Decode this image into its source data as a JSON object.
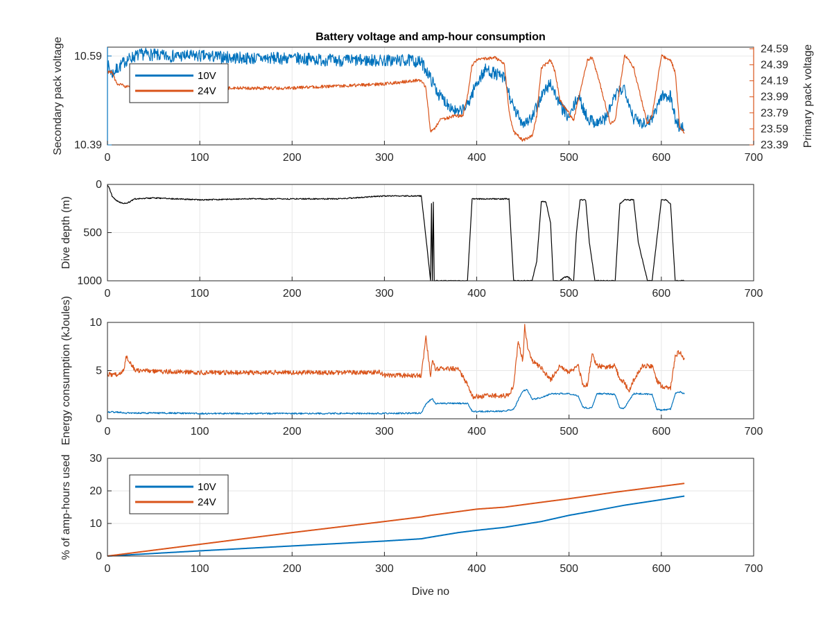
{
  "figure": {
    "title": "Battery voltage and amp-hour consumption",
    "xlabel": "Dive no"
  },
  "colors": {
    "blue": "#0072BD",
    "orange": "#D95319",
    "black": "#000000",
    "grid": "#e6e6e6",
    "axis": "#262626"
  },
  "chart_data": [
    {
      "type": "line",
      "title": "Battery voltage and amp-hour consumption",
      "xlabel": "",
      "ylabel": "Secondary pack voltage",
      "ylabel_right": "Primary pack voltage",
      "xlim": [
        0,
        700
      ],
      "xticks": [
        0,
        100,
        200,
        300,
        400,
        500,
        600,
        700
      ],
      "ylim": [
        10.39,
        10.61
      ],
      "yticks": [
        10.39,
        10.59
      ],
      "ylim_right": [
        23.39,
        24.61
      ],
      "yticks_right": [
        23.39,
        23.59,
        23.79,
        23.99,
        24.19,
        24.39,
        24.59
      ],
      "grid": true,
      "legend": "top-left",
      "series": [
        {
          "name": "10V",
          "axis": "left",
          "color": "#0072BD",
          "noise": 0.014,
          "x": [
            0,
            5,
            10,
            20,
            30,
            40,
            60,
            100,
            150,
            200,
            250,
            300,
            330,
            340,
            345,
            350,
            355,
            360,
            370,
            380,
            390,
            400,
            410,
            420,
            430,
            440,
            450,
            460,
            470,
            480,
            490,
            500,
            510,
            520,
            530,
            540,
            550,
            560,
            570,
            580,
            590,
            600,
            610,
            615,
            620,
            625
          ],
          "y": [
            10.57,
            10.55,
            10.56,
            10.58,
            10.59,
            10.595,
            10.59,
            10.59,
            10.585,
            10.585,
            10.58,
            10.58,
            10.58,
            10.575,
            10.56,
            10.54,
            10.52,
            10.5,
            10.48,
            10.46,
            10.48,
            10.53,
            10.56,
            10.55,
            10.54,
            10.47,
            10.44,
            10.45,
            10.5,
            10.53,
            10.48,
            10.45,
            10.5,
            10.45,
            10.44,
            10.45,
            10.5,
            10.52,
            10.45,
            10.44,
            10.45,
            10.5,
            10.5,
            10.45,
            10.43,
            10.43
          ]
        },
        {
          "name": "24V",
          "axis": "right",
          "color": "#D95319",
          "noise": 0.02,
          "x": [
            0,
            5,
            10,
            20,
            40,
            100,
            200,
            300,
            340,
            345,
            350,
            355,
            360,
            375,
            385,
            390,
            395,
            400,
            420,
            430,
            435,
            440,
            450,
            460,
            465,
            470,
            480,
            485,
            490,
            505,
            510,
            520,
            525,
            530,
            545,
            550,
            560,
            565,
            570,
            585,
            590,
            600,
            610,
            615,
            620,
            625
          ],
          "y": [
            24.3,
            24.3,
            24.15,
            24.12,
            24.12,
            24.1,
            24.1,
            24.15,
            24.2,
            24.1,
            23.55,
            23.6,
            23.7,
            23.75,
            23.75,
            24.0,
            24.39,
            24.45,
            24.48,
            24.4,
            23.8,
            23.55,
            23.45,
            23.5,
            23.75,
            24.35,
            24.45,
            24.3,
            23.95,
            23.7,
            23.95,
            24.45,
            24.48,
            24.3,
            23.65,
            23.7,
            24.5,
            24.45,
            24.35,
            23.65,
            23.75,
            24.5,
            24.45,
            24.3,
            23.6,
            23.55
          ]
        }
      ]
    },
    {
      "type": "line",
      "title": "",
      "xlabel": "",
      "ylabel": "Dive depth (m)",
      "xlim": [
        0,
        700
      ],
      "xticks": [
        0,
        100,
        200,
        300,
        400,
        500,
        600,
        700
      ],
      "ylim": [
        0,
        1000
      ],
      "yticks": [
        0,
        500,
        1000
      ],
      "y_reversed": true,
      "grid": true,
      "series": [
        {
          "name": "",
          "color": "#000000",
          "noise": 6,
          "x": [
            0,
            2,
            5,
            10,
            15,
            20,
            30,
            50,
            100,
            150,
            200,
            250,
            300,
            340,
            345,
            350,
            351,
            352,
            353,
            354,
            355,
            360,
            390,
            395,
            400,
            410,
            420,
            435,
            440,
            445,
            460,
            465,
            470,
            475,
            480,
            483,
            490,
            495,
            500,
            503,
            505,
            508,
            512,
            518,
            522,
            528,
            530,
            550,
            555,
            560,
            570,
            575,
            585,
            590,
            600,
            605,
            610,
            615,
            620,
            625
          ],
          "y": [
            0,
            40,
            120,
            170,
            190,
            200,
            150,
            140,
            160,
            150,
            150,
            150,
            120,
            120,
            550,
            1000,
            200,
            1000,
            180,
            1000,
            1000,
            1000,
            1000,
            150,
            150,
            150,
            150,
            150,
            1000,
            1000,
            1000,
            800,
            180,
            180,
            400,
            1000,
            1000,
            960,
            960,
            1000,
            1000,
            500,
            160,
            160,
            600,
            1000,
            1000,
            1000,
            200,
            160,
            160,
            600,
            1000,
            1000,
            160,
            160,
            200,
            1000,
            1000,
            1000
          ]
        }
      ]
    },
    {
      "type": "line",
      "title": "",
      "xlabel": "",
      "ylabel": "Energy consumption (kJoules)",
      "xlim": [
        0,
        700
      ],
      "xticks": [
        0,
        100,
        200,
        300,
        400,
        500,
        600,
        700
      ],
      "ylim": [
        0,
        10
      ],
      "yticks": [
        0,
        5,
        10
      ],
      "grid": true,
      "series": [
        {
          "name": "",
          "color": "#0072BD",
          "noise": 0.08,
          "x": [
            0,
            10,
            20,
            50,
            100,
            200,
            295,
            300,
            340,
            345,
            348,
            352,
            355,
            360,
            390,
            395,
            400,
            430,
            440,
            450,
            455,
            460,
            470,
            480,
            490,
            500,
            510,
            515,
            520,
            525,
            530,
            540,
            550,
            555,
            560,
            570,
            580,
            590,
            595,
            600,
            610,
            615,
            620,
            625
          ],
          "y": [
            0.7,
            0.7,
            0.6,
            0.6,
            0.55,
            0.55,
            0.55,
            0.55,
            0.6,
            1.5,
            1.8,
            2.1,
            1.6,
            1.6,
            1.6,
            0.8,
            0.75,
            0.8,
            1.0,
            2.9,
            3.0,
            2.0,
            2.2,
            2.6,
            2.6,
            2.6,
            2.4,
            1.2,
            1.1,
            1.2,
            2.6,
            2.6,
            2.5,
            1.1,
            1.1,
            2.6,
            2.6,
            2.5,
            1.0,
            0.9,
            1.0,
            2.6,
            2.8,
            2.6
          ]
        },
        {
          "name": "",
          "color": "#D95319",
          "noise": 0.25,
          "x": [
            0,
            10,
            18,
            20,
            30,
            100,
            200,
            295,
            300,
            340,
            345,
            350,
            352,
            355,
            360,
            380,
            390,
            395,
            420,
            435,
            440,
            445,
            450,
            452,
            455,
            460,
            470,
            480,
            490,
            500,
            510,
            515,
            520,
            525,
            530,
            540,
            550,
            555,
            560,
            565,
            570,
            580,
            590,
            595,
            600,
            610,
            615,
            620,
            625
          ],
          "y": [
            4.6,
            4.6,
            5.0,
            6.6,
            5.0,
            4.8,
            4.8,
            4.8,
            4.5,
            4.5,
            8.5,
            4.5,
            6.0,
            5.2,
            5.2,
            5.2,
            3.5,
            2.3,
            2.4,
            2.4,
            3.5,
            8.0,
            6.0,
            9.6,
            7.5,
            6.0,
            5.3,
            4.0,
            5.5,
            4.8,
            5.5,
            3.5,
            3.5,
            6.8,
            5.5,
            5.4,
            5.5,
            4.0,
            3.8,
            2.8,
            4.0,
            5.5,
            5.5,
            4.0,
            3.4,
            3.2,
            6.5,
            7.0,
            6.2
          ]
        }
      ]
    },
    {
      "type": "line",
      "title": "",
      "xlabel": "Dive no",
      "ylabel": "% of amp-hours used",
      "xlim": [
        0,
        700
      ],
      "xticks": [
        0,
        100,
        200,
        300,
        400,
        500,
        600,
        700
      ],
      "ylim": [
        0,
        30
      ],
      "yticks": [
        0,
        10,
        20,
        30
      ],
      "grid": true,
      "legend": "top-left",
      "series": [
        {
          "name": "10V",
          "color": "#0072BD",
          "noise": 0,
          "x": [
            0,
            100,
            200,
            300,
            340,
            350,
            380,
            400,
            430,
            470,
            500,
            530,
            560,
            600,
            625
          ],
          "y": [
            0,
            1.6,
            3.1,
            4.6,
            5.3,
            5.8,
            7.2,
            7.9,
            8.8,
            10.6,
            12.5,
            14.0,
            15.6,
            17.3,
            18.4
          ],
          "line_width": 2
        },
        {
          "name": "24V",
          "color": "#D95319",
          "noise": 0,
          "x": [
            0,
            100,
            200,
            300,
            340,
            350,
            400,
            430,
            470,
            500,
            550,
            600,
            625
          ],
          "y": [
            0,
            3.6,
            7.2,
            10.6,
            12.0,
            12.5,
            14.4,
            15.0,
            16.5,
            17.6,
            19.6,
            21.4,
            22.3
          ],
          "line_width": 2
        }
      ]
    }
  ]
}
